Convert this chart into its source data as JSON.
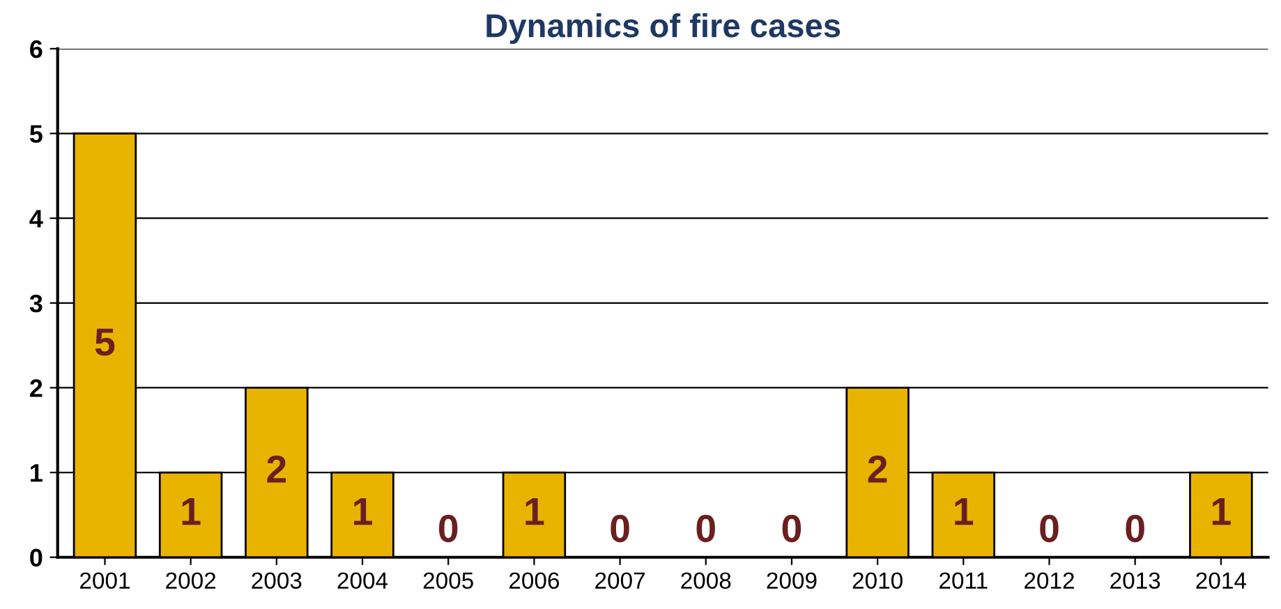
{
  "chart_data": {
    "type": "bar",
    "title": "Dynamics of fire cases",
    "categories": [
      "2001",
      "2002",
      "2003",
      "2004",
      "2005",
      "2006",
      "2007",
      "2008",
      "2009",
      "2010",
      "2011",
      "2012",
      "2013",
      "2014"
    ],
    "values": [
      5,
      1,
      2,
      1,
      0,
      1,
      0,
      0,
      0,
      2,
      1,
      0,
      0,
      1
    ],
    "color": "#e8b400",
    "ylim": [
      0,
      6
    ],
    "yticks": [
      0,
      1,
      2,
      3,
      4,
      5,
      6
    ],
    "grid": "y",
    "data_labels": true
  }
}
